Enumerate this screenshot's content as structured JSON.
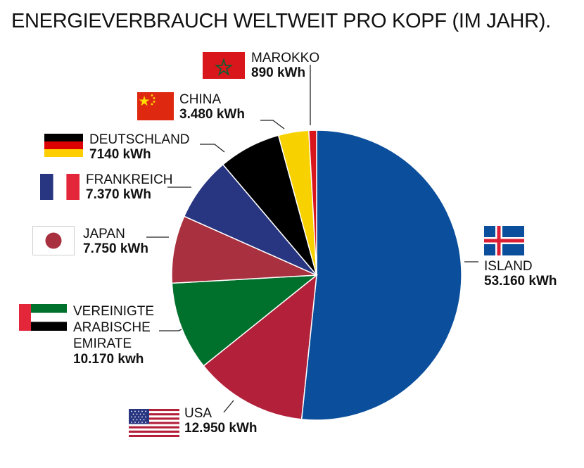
{
  "title": "ENERGIEVERBRAUCH WELTWEIT PRO KOPF (IM JAHR).",
  "chart_data": {
    "type": "pie",
    "title": "ENERGIEVERBRAUCH WELTWEIT PRO KOPF (IM JAHR).",
    "unit": "kWh",
    "slices": [
      {
        "name": "ISLAND",
        "value": 53160,
        "value_label": "53.160 kWh",
        "color": "#0b4f9c",
        "flag_icon": "iceland-flag-icon"
      },
      {
        "name": "USA",
        "value": 12950,
        "value_label": "12.950 kWh",
        "color": "#b2203a",
        "flag_icon": "usa-flag-icon"
      },
      {
        "name": "VEREINIGTE\nARABISCHE\nEMIRATE",
        "value": 10170,
        "value_label": "10.170 kwh",
        "color": "#00712c",
        "flag_icon": "uae-flag-icon"
      },
      {
        "name": "JAPAN",
        "value": 7750,
        "value_label": "7.750 kWh",
        "color": "#a8303f",
        "flag_icon": "japan-flag-icon"
      },
      {
        "name": "FRANKREICH",
        "value": 7370,
        "value_label": "7.370 kWh",
        "color": "#283580",
        "flag_icon": "france-flag-icon"
      },
      {
        "name": "DEUTSCHLAND",
        "value": 7140,
        "value_label": "7140 kWh",
        "color": "#000000",
        "flag_icon": "germany-flag-icon"
      },
      {
        "name": "CHINA",
        "value": 3480,
        "value_label": "3.480 kWh",
        "color": "#f7d200",
        "flag_icon": "china-flag-icon"
      },
      {
        "name": "MAROKKO",
        "value": 890,
        "value_label": "890 kWh",
        "color": "#d8161b",
        "flag_icon": "morocco-flag-icon"
      }
    ]
  }
}
